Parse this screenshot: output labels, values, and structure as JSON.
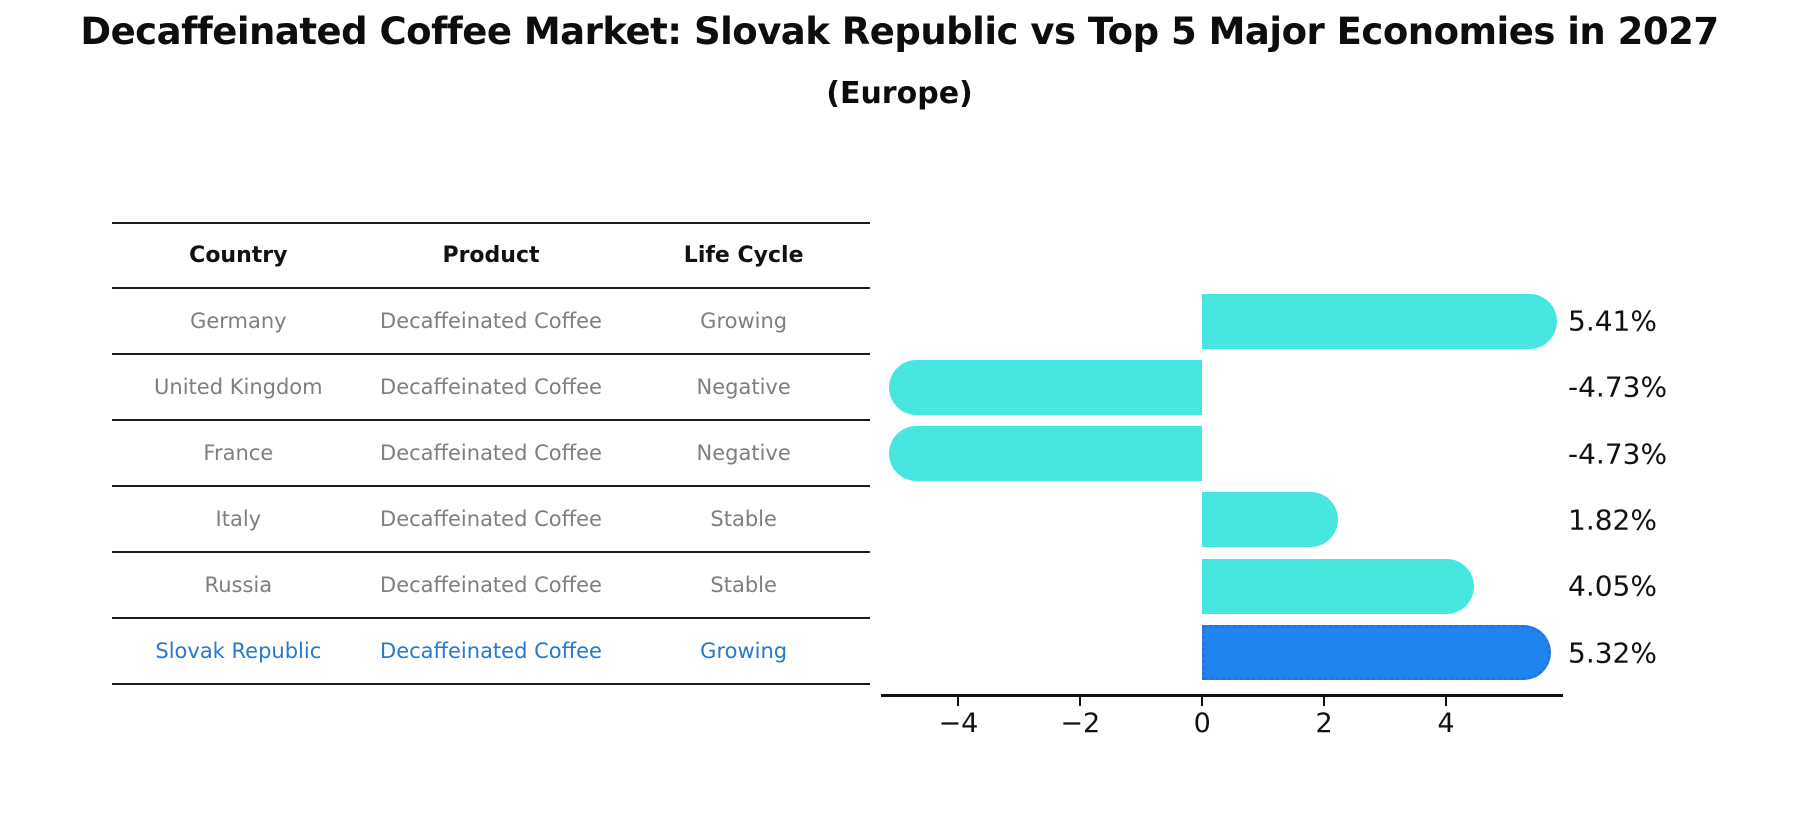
{
  "title": "Decaffeinated Coffee Market: Slovak Republic vs Top 5 Major Economies in 2027",
  "subtitle": "(Europe)",
  "table": {
    "headers": [
      "Country",
      "Product",
      "Life Cycle"
    ],
    "rows": [
      {
        "country": "Germany",
        "product": "Decaffeinated Coffee",
        "life_cycle": "Growing",
        "highlighted": false
      },
      {
        "country": "United Kingdom",
        "product": "Decaffeinated Coffee",
        "life_cycle": "Negative",
        "highlighted": false
      },
      {
        "country": "France",
        "product": "Decaffeinated Coffee",
        "life_cycle": "Negative",
        "highlighted": false
      },
      {
        "country": "Italy",
        "product": "Decaffeinated Coffee",
        "life_cycle": "Stable",
        "highlighted": false
      },
      {
        "country": "Russia",
        "product": "Decaffeinated Coffee",
        "life_cycle": "Stable",
        "highlighted": false
      },
      {
        "country": "Slovak Republic",
        "product": "Decaffeinated Coffee",
        "life_cycle": "Growing",
        "highlighted": true
      }
    ]
  },
  "chart_data": {
    "type": "bar",
    "orientation": "horizontal",
    "title": "Decaffeinated Coffee Market: Slovak Republic vs Top 5 Major Economies in 2027 (Europe)",
    "categories": [
      "Germany",
      "United Kingdom",
      "France",
      "Italy",
      "Russia",
      "Slovak Republic"
    ],
    "values": [
      5.41,
      -4.73,
      -4.73,
      1.82,
      4.05,
      5.32
    ],
    "value_labels": [
      "5.41%",
      "-4.73%",
      "-4.73%",
      "1.82%",
      "4.05%",
      "5.32%"
    ],
    "unit": "%",
    "highlight_index": 5,
    "x_ticks": [
      -4,
      -2,
      0,
      2,
      4
    ],
    "x_tick_labels": [
      "−4",
      "−2",
      "0",
      "2",
      "4"
    ],
    "xlim": [
      -5.27,
      5.92
    ],
    "grid": false,
    "legend": false,
    "bar_color": "#47E6E0",
    "highlight_color": "#1E84F0",
    "highlight_border_color": "#2A70D8"
  },
  "colors": {
    "row_text": "#7f7f7f",
    "highlight_text": "#2679cc",
    "header_text": "#111111",
    "axis": "#111111",
    "background": "#ffffff"
  }
}
